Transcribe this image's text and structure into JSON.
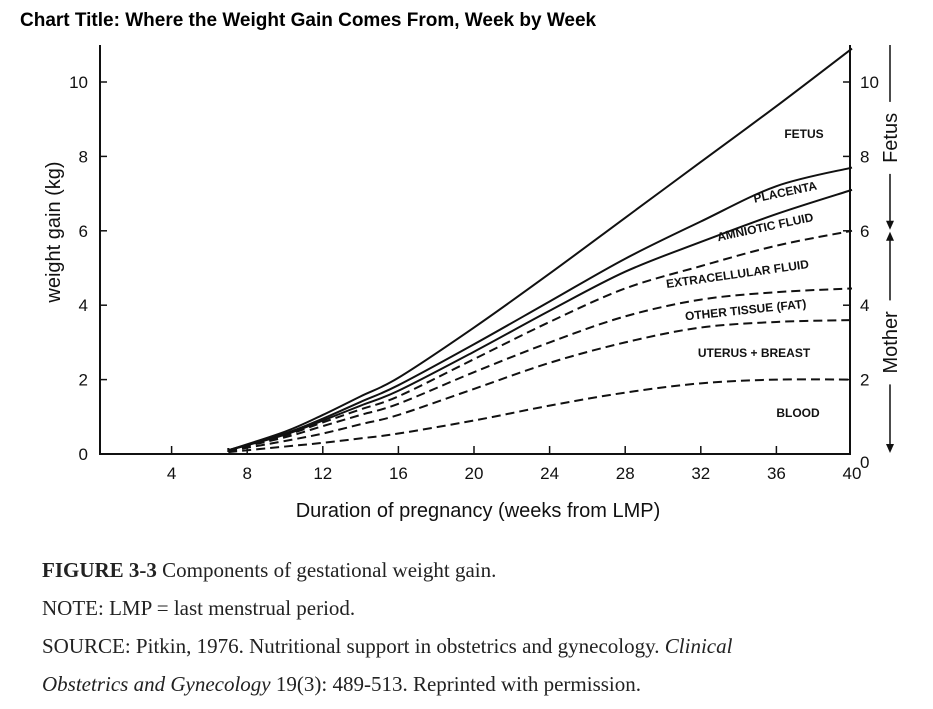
{
  "title": "Chart Title: Where the Weight Gain Comes From, Week by Week",
  "caption": {
    "figure_label": "FIGURE 3-3",
    "figure_text": " Components of gestational weight gain.",
    "note": "NOTE: LMP = last menstrual period.",
    "source_prefix": "SOURCE: Pitkin, 1976. Nutritional support in obstetrics and gynecology. ",
    "source_journal_1": "Clinical",
    "source_journal_2": "Obstetrics and Gynecology",
    "source_suffix": " 19(3): 489-513. Reprinted with permission."
  },
  "chart_data": {
    "type": "area",
    "title": "Where the Weight Gain Comes From, Week by Week",
    "xlabel": "Duration of pregnancy (weeks from LMP)",
    "ylabel": "weight gain (kg)",
    "xlim": [
      0,
      40
    ],
    "ylim": [
      0,
      11
    ],
    "xticks": [
      4,
      8,
      12,
      16,
      20,
      24,
      28,
      32,
      36,
      40
    ],
    "yticks": [
      0,
      2,
      4,
      6,
      8,
      10
    ],
    "right_yticks": [
      0,
      2,
      4,
      6,
      8,
      10
    ],
    "right_annotations": [
      {
        "label": "Fetus",
        "range": [
          6,
          11
        ]
      },
      {
        "label": "Mother",
        "range": [
          0,
          6
        ]
      }
    ],
    "grid": false,
    "stacked_cumulative": true,
    "x": [
      7,
      10,
      12,
      14,
      16,
      20,
      24,
      28,
      32,
      36,
      40
    ],
    "series": [
      {
        "name": "BLOOD",
        "style": "dashed",
        "values": [
          0.05,
          0.2,
          0.3,
          0.42,
          0.55,
          0.9,
          1.3,
          1.65,
          1.9,
          2.0,
          2.0
        ]
      },
      {
        "name": "UTERUS + BREAST",
        "style": "dashed",
        "values": [
          0.08,
          0.35,
          0.55,
          0.8,
          1.05,
          1.75,
          2.45,
          3.0,
          3.4,
          3.55,
          3.6
        ]
      },
      {
        "name": "OTHER TISSUE (FAT)",
        "style": "dashed",
        "values": [
          0.1,
          0.45,
          0.75,
          1.05,
          1.35,
          2.2,
          3.0,
          3.7,
          4.15,
          4.35,
          4.45
        ]
      },
      {
        "name": "EXTRACELLULAR FLUID",
        "style": "dashed",
        "values": [
          0.1,
          0.5,
          0.85,
          1.2,
          1.55,
          2.55,
          3.55,
          4.45,
          5.05,
          5.6,
          6.0
        ]
      },
      {
        "name": "AMNIOTIC FLUID",
        "style": "solid",
        "values": [
          0.1,
          0.52,
          0.9,
          1.3,
          1.7,
          2.75,
          3.85,
          4.9,
          5.7,
          6.45,
          7.1
        ]
      },
      {
        "name": "PLACENTA",
        "style": "solid",
        "values": [
          0.1,
          0.55,
          0.95,
          1.4,
          1.85,
          2.95,
          4.1,
          5.25,
          6.25,
          7.2,
          7.7
        ]
      },
      {
        "name": "FETUS",
        "style": "solid",
        "values": [
          0.1,
          0.6,
          1.05,
          1.55,
          2.05,
          3.4,
          4.85,
          6.35,
          7.85,
          9.35,
          10.9
        ]
      }
    ],
    "region_labels": [
      "FETUS",
      "PLACENTA",
      "AMNIOTIC FLUID",
      "EXTRACELLULAR FLUID",
      "OTHER TISSUE (FAT)",
      "UTERUS + BREAST",
      "BLOOD"
    ]
  }
}
